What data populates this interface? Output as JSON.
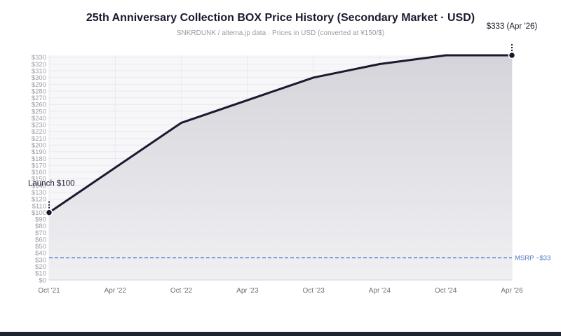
{
  "chart_data": {
    "type": "area",
    "title": "25th Anniversary Collection BOX Price History (Secondary Market · USD)",
    "subtitle": "SNKRDUNK / altema.jp data · Prices in USD (converted at ¥150/$)",
    "x_ticks": [
      "Oct '21",
      "Apr '22",
      "Oct '22",
      "Apr '23",
      "Oct '23",
      "Apr '24",
      "Oct '24",
      "Apr '26"
    ],
    "ylim": [
      0,
      333
    ],
    "y_ticks": [
      "$0",
      "$10",
      "$20",
      "$30",
      "$40",
      "$50",
      "$60",
      "$70",
      "$80",
      "$90",
      "$100",
      "$110",
      "$120",
      "$130",
      "$140",
      "$150",
      "$160",
      "$170",
      "$180",
      "$190",
      "$200",
      "$210",
      "$220",
      "$230",
      "$240",
      "$250",
      "$260",
      "$270",
      "$280",
      "$290",
      "$300",
      "$310",
      "$320",
      "$330"
    ],
    "series": [
      {
        "points": [
          {
            "x": "Oct '21",
            "y": 100
          },
          {
            "x": "Oct '22",
            "y": 233
          },
          {
            "x": "Oct '23",
            "y": 300
          },
          {
            "x": "Apr '24",
            "y": 320
          },
          {
            "x": "Oct '24",
            "y": 333
          },
          {
            "x": "Apr '26",
            "y": 333
          }
        ]
      }
    ],
    "reference_line": {
      "y": 33,
      "label": "MSRP ~$33"
    },
    "annotations": [
      {
        "x": "Oct '21",
        "y": 100,
        "text": "Launch $100"
      },
      {
        "x": "Apr '26",
        "y": 333,
        "text": "$333 (Apr '26)"
      }
    ],
    "grid": true,
    "colors": {
      "line": "#1a1a2e",
      "fill_top": "#d4d4da",
      "fill_bottom": "#f0f0f3",
      "msrp": "#4a78c2",
      "grid": "#e8e8ee",
      "plot_bg": "#f7f7fa"
    }
  }
}
